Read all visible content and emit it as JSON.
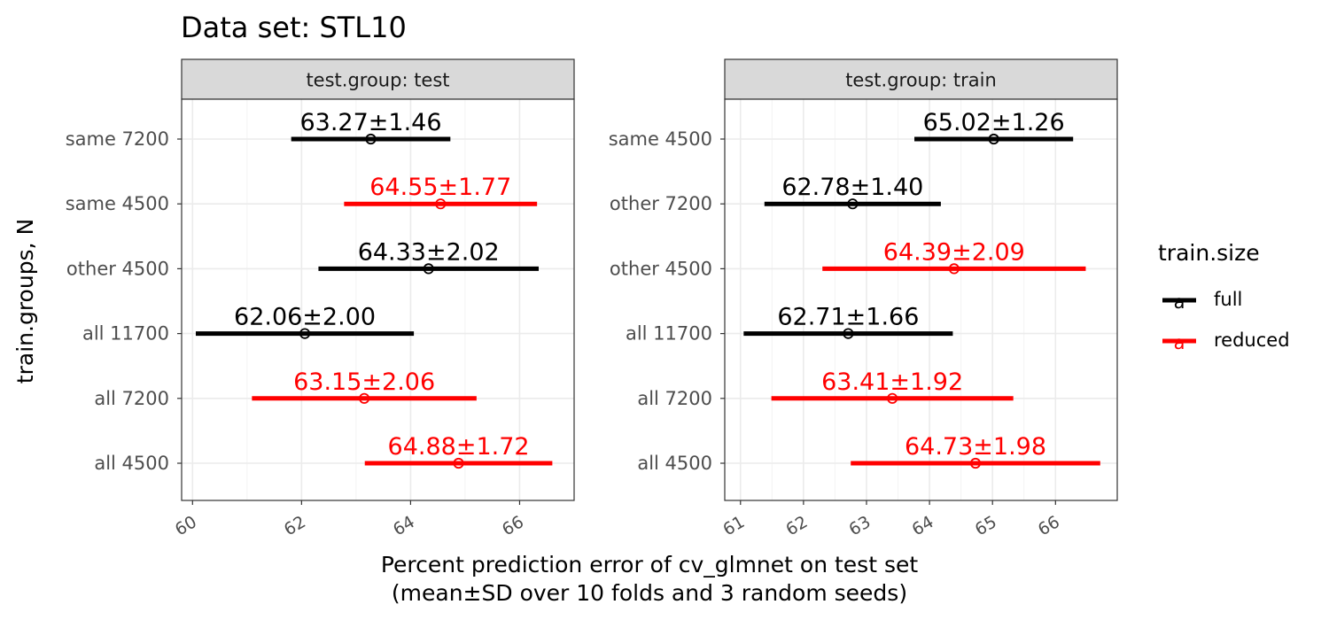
{
  "title": "Data set: STL10",
  "colors": {
    "full": "#000000",
    "reduced": "#ff0000",
    "strip_bg": "#d9d9d9",
    "grid": "#ebebeb",
    "panel_border": "#333333"
  },
  "legend": {
    "title": "train.size",
    "items": [
      {
        "key": "full",
        "label": "full",
        "glyph": "a"
      },
      {
        "key": "reduced",
        "label": "reduced",
        "glyph": "a"
      }
    ]
  },
  "chart_data": {
    "type": "scatter",
    "title": "Data set: STL10",
    "xlabel_line1": "Percent prediction error of cv_glmnet on test set",
    "xlabel_line2": "(mean±SD over 10 folds and 3 random seeds)",
    "ylabel": "train.groups, N",
    "grid": true,
    "legend_position": "right",
    "panels": [
      {
        "strip": "test.group: test",
        "xlim": [
          59.8,
          67.0
        ],
        "xticks": [
          60,
          62,
          64,
          66
        ],
        "xtick_labels": [
          "60",
          "62",
          "64",
          "66"
        ],
        "categories": [
          "same 7200",
          "same 4500",
          "other 4500",
          "all 11700",
          "all 7200",
          "all 4500"
        ],
        "points": [
          {
            "category": "same 7200",
            "mean": 63.27,
            "sd": 1.46,
            "label": "63.27±1.46",
            "train_size": "full"
          },
          {
            "category": "same 4500",
            "mean": 64.55,
            "sd": 1.77,
            "label": "64.55±1.77",
            "train_size": "reduced"
          },
          {
            "category": "other 4500",
            "mean": 64.33,
            "sd": 2.02,
            "label": "64.33±2.02",
            "train_size": "full"
          },
          {
            "category": "all 11700",
            "mean": 62.06,
            "sd": 2.0,
            "label": "62.06±2.00",
            "train_size": "full"
          },
          {
            "category": "all 7200",
            "mean": 63.15,
            "sd": 2.06,
            "label": "63.15±2.06",
            "train_size": "reduced"
          },
          {
            "category": "all 4500",
            "mean": 64.88,
            "sd": 1.72,
            "label": "64.88±1.72",
            "train_size": "reduced"
          }
        ]
      },
      {
        "strip": "test.group: train",
        "xlim": [
          60.75,
          66.98
        ],
        "xticks": [
          61,
          62,
          63,
          64,
          65,
          66
        ],
        "xtick_labels": [
          "61",
          "62",
          "63",
          "64",
          "65",
          "66"
        ],
        "categories": [
          "same 4500",
          "other 7200",
          "other 4500",
          "all 11700",
          "all 7200",
          "all 4500"
        ],
        "points": [
          {
            "category": "same 4500",
            "mean": 65.02,
            "sd": 1.26,
            "label": "65.02±1.26",
            "train_size": "full"
          },
          {
            "category": "other 7200",
            "mean": 62.78,
            "sd": 1.4,
            "label": "62.78±1.40",
            "train_size": "full"
          },
          {
            "category": "other 4500",
            "mean": 64.39,
            "sd": 2.09,
            "label": "64.39±2.09",
            "train_size": "reduced"
          },
          {
            "category": "all 11700",
            "mean": 62.71,
            "sd": 1.66,
            "label": "62.71±1.66",
            "train_size": "full"
          },
          {
            "category": "all 7200",
            "mean": 63.41,
            "sd": 1.92,
            "label": "63.41±1.92",
            "train_size": "reduced"
          },
          {
            "category": "all 4500",
            "mean": 64.73,
            "sd": 1.98,
            "label": "64.73±1.98",
            "train_size": "reduced"
          }
        ]
      }
    ]
  }
}
